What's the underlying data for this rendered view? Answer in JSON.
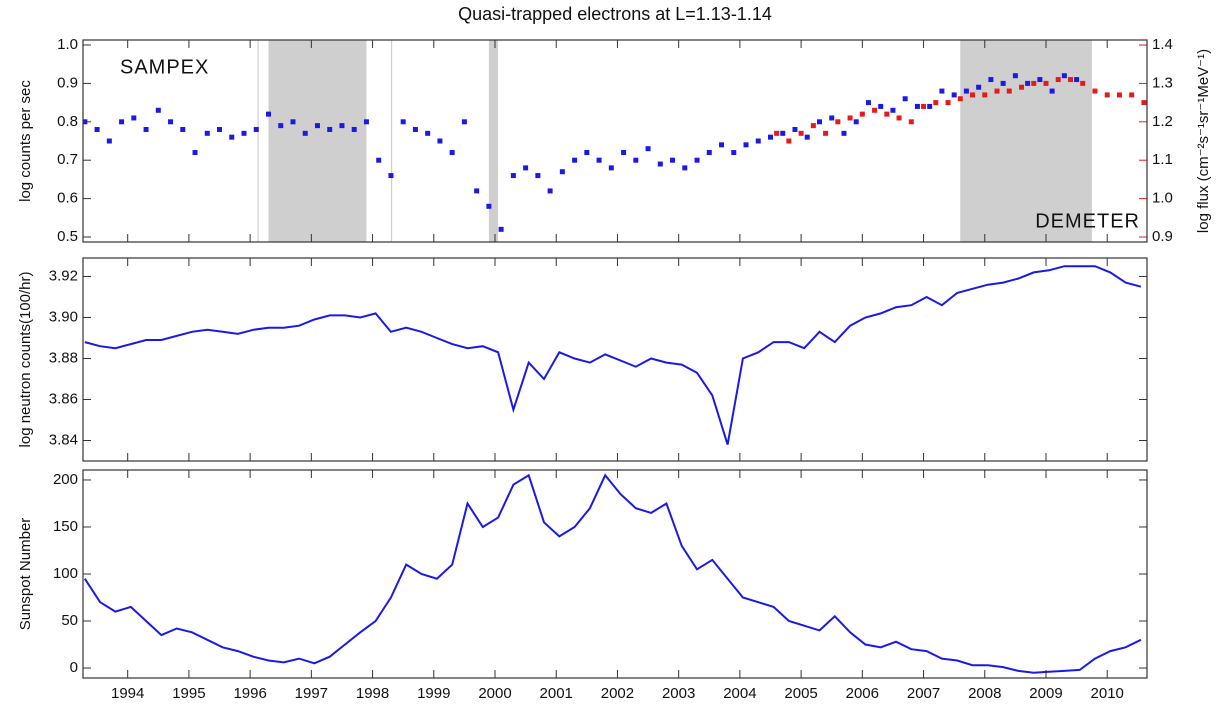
{
  "chart_data": [
    {
      "type": "scatter",
      "title": "Quasi-trapped electrons at L=1.13-1.14",
      "y_label": "log counts per sec",
      "y2_label": "log flux (cm⁻²s⁻¹sr⁻¹MeV⁻¹)",
      "annotations": [
        {
          "text": "SAMPEX",
          "color": "#2020e0"
        },
        {
          "text": "DEMETER",
          "color": "#e02020"
        }
      ],
      "xlim": [
        1993.27,
        2010.65
      ],
      "xticks": [
        1994,
        1995,
        1996,
        1997,
        1998,
        1999,
        2000,
        2001,
        2002,
        2003,
        2004,
        2005,
        2006,
        2007,
        2008,
        2009,
        2010
      ],
      "ylim": [
        0.487,
        1.013
      ],
      "yticks": [
        0.5,
        0.6,
        0.7,
        0.8,
        0.9,
        {
          "value": 1,
          "label": "1.0"
        }
      ],
      "y2lim": [
        0.887,
        1.413
      ],
      "y2ticks": [
        0.9,
        {
          "value": 1,
          "label": "1.0"
        },
        1.1,
        1.2,
        1.3,
        1.4
      ],
      "shaded": [
        {
          "start": 1996.12,
          "end": 1996.14
        },
        {
          "start": 1996.3,
          "end": 1997.9
        },
        {
          "start": 1998.3,
          "end": 1998.32
        },
        {
          "start": 1999.9,
          "end": 2000.05
        },
        {
          "start": 2007.6,
          "end": 2009.75
        }
      ],
      "series": [
        {
          "color": "#1a1ae6",
          "x": [
            1993.3,
            1993.5,
            1993.7,
            1993.9,
            1994.1,
            1994.3,
            1994.5,
            1994.7,
            1994.9,
            1995.1,
            1995.3,
            1995.5,
            1995.7,
            1995.9,
            1996.1,
            1996.3,
            1996.5,
            1996.7,
            1996.9,
            1997.1,
            1997.3,
            1997.5,
            1997.7,
            1997.9,
            1998.1,
            1998.3,
            1998.5,
            1998.7,
            1998.9,
            1999.1,
            1999.3,
            1999.5,
            1999.7,
            1999.9,
            2000.1,
            2000.3,
            2000.5,
            2000.7,
            2000.9,
            2001.1,
            2001.3,
            2001.5,
            2001.7,
            2001.9,
            2002.1,
            2002.3,
            2002.5,
            2002.7,
            2002.9,
            2003.1,
            2003.3,
            2003.5,
            2003.7,
            2003.9,
            2004.1,
            2004.3,
            2004.5,
            2004.7,
            2004.9,
            2005.1,
            2005.3,
            2005.5,
            2005.7,
            2005.9,
            2006.1,
            2006.3,
            2006.5,
            2006.7,
            2006.9,
            2007.1,
            2007.3,
            2007.5,
            2007.7,
            2007.9,
            2008.1,
            2008.3,
            2008.5,
            2008.7,
            2008.9,
            2009.1,
            2009.3,
            2009.5
          ],
          "values": [
            0.8,
            0.78,
            0.75,
            0.8,
            0.81,
            0.78,
            0.83,
            0.8,
            0.78,
            0.72,
            0.77,
            0.78,
            0.76,
            0.77,
            0.78,
            0.82,
            0.79,
            0.8,
            0.77,
            0.79,
            0.78,
            0.79,
            0.78,
            0.8,
            0.7,
            0.66,
            0.8,
            0.78,
            0.77,
            0.75,
            0.72,
            0.8,
            0.62,
            0.58,
            0.52,
            0.66,
            0.68,
            0.66,
            0.62,
            0.67,
            0.7,
            0.72,
            0.7,
            0.68,
            0.72,
            0.7,
            0.73,
            0.69,
            0.7,
            0.68,
            0.7,
            0.72,
            0.74,
            0.72,
            0.74,
            0.75,
            0.76,
            0.77,
            0.78,
            0.76,
            0.8,
            0.81,
            0.77,
            0.8,
            0.85,
            0.84,
            0.83,
            0.86,
            0.84,
            0.84,
            0.88,
            0.87,
            0.88,
            0.89,
            0.91,
            0.9,
            0.92,
            0.9,
            0.91,
            0.88,
            0.92,
            0.91
          ]
        },
        {
          "color": "#e61a1a",
          "axis": "y2",
          "x": [
            2004.6,
            2004.8,
            2005.0,
            2005.2,
            2005.4,
            2005.6,
            2005.8,
            2006.0,
            2006.2,
            2006.4,
            2006.6,
            2006.8,
            2007.0,
            2007.2,
            2007.4,
            2007.6,
            2007.8,
            2008.0,
            2008.2,
            2008.4,
            2008.6,
            2008.8,
            2009.0,
            2009.2,
            2009.4,
            2009.6,
            2009.8,
            2010.0,
            2010.2,
            2010.4,
            2010.6
          ],
          "values": [
            1.17,
            1.15,
            1.17,
            1.19,
            1.17,
            1.2,
            1.21,
            1.22,
            1.23,
            1.22,
            1.21,
            1.2,
            1.24,
            1.25,
            1.25,
            1.26,
            1.27,
            1.27,
            1.28,
            1.28,
            1.29,
            1.3,
            1.3,
            1.31,
            1.31,
            1.3,
            1.28,
            1.27,
            1.27,
            1.27,
            1.25
          ]
        }
      ]
    },
    {
      "type": "line",
      "y_label": "log neutron counts(100/hr)",
      "xlim": [
        1993.27,
        2010.65
      ],
      "xticks": [
        1994,
        1995,
        1996,
        1997,
        1998,
        1999,
        2000,
        2001,
        2002,
        2003,
        2004,
        2005,
        2006,
        2007,
        2008,
        2009,
        2010
      ],
      "ylim": [
        3.83,
        3.929
      ],
      "yticks": [
        3.84,
        3.86,
        3.88,
        {
          "value": 3.9,
          "label": "3.90"
        },
        3.92
      ],
      "series": [
        {
          "color": "#1a1ae6",
          "x": [
            1993.3,
            1993.55,
            1993.8,
            1994.05,
            1994.3,
            1994.55,
            1994.8,
            1995.05,
            1995.3,
            1995.55,
            1995.8,
            1996.05,
            1996.3,
            1996.55,
            1996.8,
            1997.05,
            1997.3,
            1997.55,
            1997.8,
            1998.05,
            1998.3,
            1998.55,
            1998.8,
            1999.05,
            1999.3,
            1999.55,
            1999.8,
            2000.05,
            2000.3,
            2000.55,
            2000.8,
            2001.05,
            2001.3,
            2001.55,
            2001.8,
            2002.05,
            2002.3,
            2002.55,
            2002.8,
            2003.05,
            2003.3,
            2003.55,
            2003.8,
            2004.05,
            2004.3,
            2004.55,
            2004.8,
            2005.05,
            2005.3,
            2005.55,
            2005.8,
            2006.05,
            2006.3,
            2006.55,
            2006.8,
            2007.05,
            2007.3,
            2007.55,
            2007.8,
            2008.05,
            2008.3,
            2008.55,
            2008.8,
            2009.05,
            2009.3,
            2009.55,
            2009.8,
            2010.05,
            2010.3,
            2010.55
          ],
          "values": [
            3.888,
            3.886,
            3.885,
            3.887,
            3.889,
            3.889,
            3.891,
            3.893,
            3.894,
            3.893,
            3.892,
            3.894,
            3.895,
            3.895,
            3.896,
            3.899,
            3.901,
            3.901,
            3.9,
            3.902,
            3.893,
            3.895,
            3.893,
            3.89,
            3.887,
            3.885,
            3.886,
            3.883,
            3.855,
            3.878,
            3.87,
            3.883,
            3.88,
            3.878,
            3.882,
            3.879,
            3.876,
            3.88,
            3.878,
            3.877,
            3.873,
            3.862,
            3.838,
            3.88,
            3.883,
            3.888,
            3.888,
            3.885,
            3.893,
            3.888,
            3.896,
            3.9,
            3.902,
            3.905,
            3.906,
            3.91,
            3.906,
            3.912,
            3.914,
            3.916,
            3.917,
            3.919,
            3.922,
            3.923,
            3.925,
            3.925,
            3.925,
            3.922,
            3.917,
            3.915
          ]
        }
      ]
    },
    {
      "type": "line",
      "y_label": "Sunspot Number",
      "xlim": [
        1993.27,
        2010.65
      ],
      "xticks": [
        1994,
        1995,
        1996,
        1997,
        1998,
        1999,
        2000,
        2001,
        2002,
        2003,
        2004,
        2005,
        2006,
        2007,
        2008,
        2009,
        2010
      ],
      "ylim": [
        -10.6,
        210.6
      ],
      "yticks": [
        0,
        50,
        100,
        150,
        200
      ],
      "series": [
        {
          "color": "#1a1ae6",
          "x": [
            1993.3,
            1993.55,
            1993.8,
            1994.05,
            1994.3,
            1994.55,
            1994.8,
            1995.05,
            1995.3,
            1995.55,
            1995.8,
            1996.05,
            1996.3,
            1996.55,
            1996.8,
            1997.05,
            1997.3,
            1997.55,
            1997.8,
            1998.05,
            1998.3,
            1998.55,
            1998.8,
            1999.05,
            1999.3,
            1999.55,
            1999.8,
            2000.05,
            2000.3,
            2000.55,
            2000.8,
            2001.05,
            2001.3,
            2001.55,
            2001.8,
            2002.05,
            2002.3,
            2002.55,
            2002.8,
            2003.05,
            2003.3,
            2003.55,
            2003.8,
            2004.05,
            2004.3,
            2004.55,
            2004.8,
            2005.05,
            2005.3,
            2005.55,
            2005.8,
            2006.05,
            2006.3,
            2006.55,
            2006.8,
            2007.05,
            2007.3,
            2007.55,
            2007.8,
            2008.05,
            2008.3,
            2008.55,
            2008.8,
            2009.05,
            2009.3,
            2009.55,
            2009.8,
            2010.05,
            2010.3,
            2010.55
          ],
          "values": [
            95,
            70,
            60,
            65,
            50,
            35,
            42,
            38,
            30,
            22,
            18,
            12,
            8,
            6,
            10,
            5,
            12,
            25,
            38,
            50,
            75,
            110,
            100,
            95,
            110,
            175,
            150,
            160,
            195,
            205,
            155,
            140,
            150,
            170,
            205,
            185,
            170,
            165,
            175,
            130,
            105,
            115,
            95,
            75,
            70,
            65,
            50,
            45,
            40,
            55,
            38,
            25,
            22,
            28,
            20,
            18,
            10,
            8,
            3,
            3,
            1,
            -3,
            -5,
            -4,
            -3,
            -2,
            10,
            18,
            22,
            30
          ]
        }
      ]
    }
  ]
}
